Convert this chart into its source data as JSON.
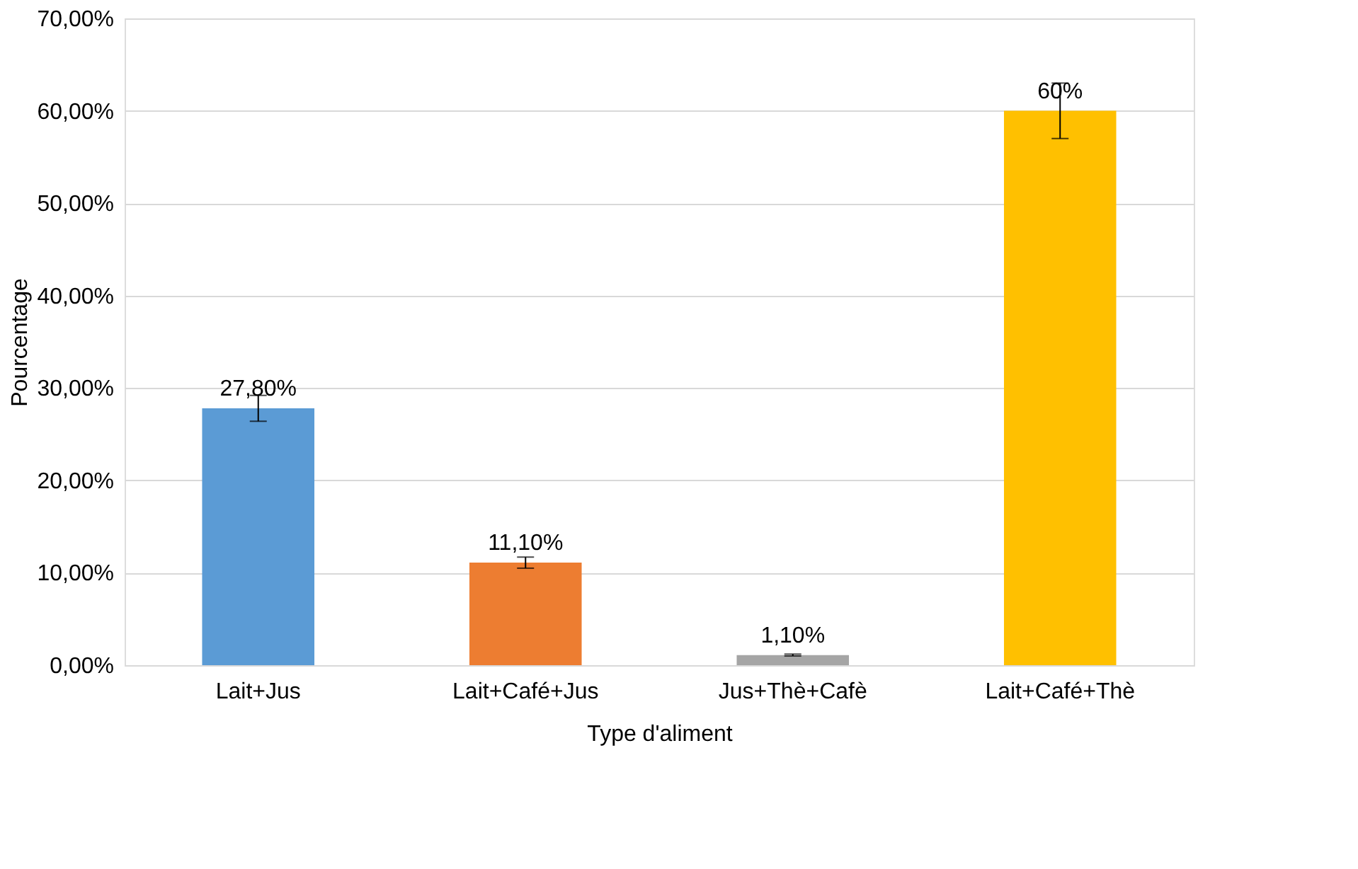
{
  "chart_data": {
    "type": "bar",
    "xlabel": "Type d'aliment",
    "ylabel": "Pourcentage",
    "categories": [
      "Lait+Jus",
      "Lait+Café+Jus",
      "Jus+Thè+Cafè",
      "Lait+Café+Thè"
    ],
    "values": [
      27.8,
      11.1,
      1.1,
      60
    ],
    "colors": [
      "#5b9bd5",
      "#ed7d31",
      "#a5a5a5",
      "#ffc000"
    ],
    "errors": [
      1.4,
      0.6,
      0.1,
      3
    ],
    "value_labels": [
      "27,80%",
      "11,10%",
      "1,10%",
      "60%"
    ],
    "ylim": [
      0,
      70
    ],
    "yticks": [
      {
        "value": 0,
        "label": "0,00%"
      },
      {
        "value": 10,
        "label": "10,00%"
      },
      {
        "value": 20,
        "label": "20,00%"
      },
      {
        "value": 30,
        "label": "30,00%"
      },
      {
        "value": 40,
        "label": "40,00%"
      },
      {
        "value": 50,
        "label": "50,00%"
      },
      {
        "value": 60,
        "label": "60,00%"
      },
      {
        "value": 70,
        "label": "70,00%"
      }
    ],
    "grid": "y"
  }
}
